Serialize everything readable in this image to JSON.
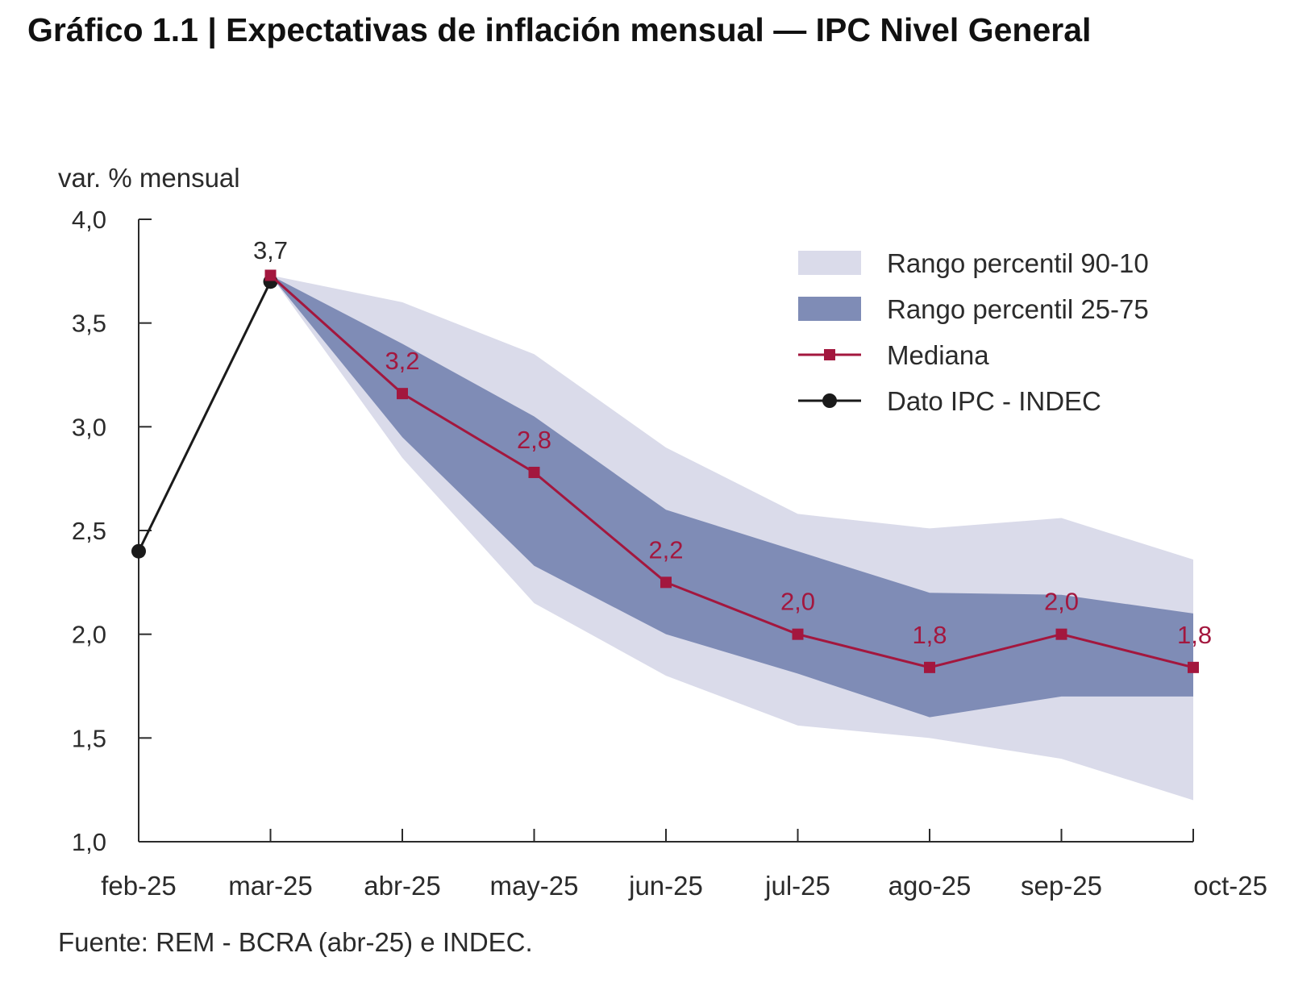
{
  "title": "Gráfico 1.1 | Expectativas de inflación mensual — IPC Nivel General",
  "source": "Fuente: REM - BCRA (abr-25) e INDEC.",
  "colors": {
    "band_90_10": "#dadbea",
    "band_25_75": "#7f8cb6",
    "mediana": "#a3173e",
    "ipc": "#1a1a1a",
    "axis": "#2b2b2b"
  },
  "chart_data": {
    "type": "line",
    "title": "",
    "ylabel": "var. % mensual",
    "xlabel": "",
    "ylim": [
      1.0,
      4.0
    ],
    "yticks": [
      1.0,
      1.5,
      2.0,
      2.5,
      3.0,
      3.5,
      4.0
    ],
    "ytick_labels": [
      "1,0",
      "1,5",
      "2,0",
      "2,5",
      "3,0",
      "3,5",
      "4,0"
    ],
    "categories": [
      "feb-25",
      "mar-25",
      "abr-25",
      "may-25",
      "jun-25",
      "jul-25",
      "ago-25",
      "sep-25",
      "oct-25"
    ],
    "legend_position": "top-right",
    "legend": [
      {
        "key": "band_90_10",
        "label": "Rango percentil 90-10",
        "kind": "band-light"
      },
      {
        "key": "band_25_75",
        "label": "Rango percentil 25-75",
        "kind": "band-dark"
      },
      {
        "key": "mediana",
        "label": "Mediana",
        "kind": "line-square"
      },
      {
        "key": "ipc",
        "label": "Dato IPC - INDEC",
        "kind": "line-circle"
      }
    ],
    "series": [
      {
        "key": "ipc",
        "name": "Dato IPC - INDEC",
        "values": [
          2.4,
          3.7,
          null,
          null,
          null,
          null,
          null,
          null,
          null
        ],
        "labels": [
          null,
          "3,7",
          null,
          null,
          null,
          null,
          null,
          null,
          null
        ]
      },
      {
        "key": "mediana",
        "name": "Mediana",
        "values": [
          null,
          3.73,
          3.16,
          2.78,
          2.25,
          2.0,
          1.84,
          2.0,
          1.84
        ],
        "labels": [
          null,
          null,
          "3,2",
          "2,8",
          "2,2",
          "2,0",
          "1,8",
          "2,0",
          "1,8"
        ]
      }
    ],
    "bands": [
      {
        "key": "band_90_10",
        "name": "Rango percentil 90-10",
        "upper": [
          null,
          3.73,
          3.6,
          3.35,
          2.9,
          2.58,
          2.51,
          2.56,
          2.36
        ],
        "lower": [
          null,
          3.73,
          2.85,
          2.15,
          1.8,
          1.56,
          1.5,
          1.4,
          1.2
        ]
      },
      {
        "key": "band_25_75",
        "name": "Rango percentil 25-75",
        "upper": [
          null,
          3.73,
          3.4,
          3.05,
          2.6,
          2.4,
          2.2,
          2.19,
          2.1
        ],
        "lower": [
          null,
          3.73,
          2.95,
          2.33,
          2.0,
          1.81,
          1.6,
          1.7,
          1.7
        ]
      }
    ]
  }
}
